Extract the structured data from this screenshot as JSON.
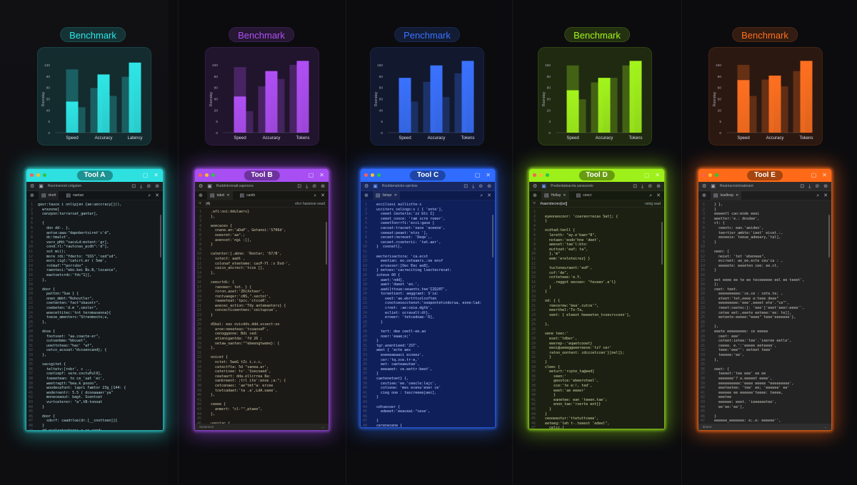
{
  "charts": [
    {
      "pill": "Benchmark",
      "color": "#2ee6e6",
      "ylabel": "Rooratay",
      "ticks": [
        "0",
        "5",
        "40",
        "50",
        "80",
        "80",
        "130"
      ],
      "chart_data": {
        "type": "bar",
        "categories": [
          "Speed",
          "Accuracy",
          "Latency"
        ],
        "series": [
          {
            "values": [
              112,
              79,
              99
            ]
          },
          {
            "values": [
              55,
              103,
              124
            ]
          },
          {
            "values": [
              45,
              65,
              null
            ]
          }
        ],
        "ylim": [
          0,
          130
        ]
      }
    },
    {
      "pill": "Benchmark",
      "color": "#b04ff5",
      "ylabel": "Rooratay",
      "ticks": [
        "0",
        "5",
        "20",
        "60",
        "80",
        "80",
        "100"
      ],
      "chart_data": {
        "type": "bar",
        "categories": [
          "Speed",
          "Accuracy",
          "Tokens"
        ],
        "series": [
          {
            "values": [
              116,
              82,
              120
            ]
          },
          {
            "values": [
              64,
              109,
              127
            ]
          },
          {
            "values": [
              38,
              95,
              null
            ]
          }
        ],
        "ylim": [
          0,
          130
        ]
      }
    },
    {
      "pill": "Penchmark",
      "color": "#3a72ff",
      "ylabel": "Rooratay",
      "ticks": [
        "0",
        "5",
        "40",
        "50",
        "50",
        "60",
        "150"
      ],
      "chart_data": {
        "type": "bar",
        "categories": [
          "Speed",
          "Accuracy",
          "Tokens"
        ],
        "series": [
          {
            "values": [
              null,
              90,
              105
            ]
          },
          {
            "values": [
              97,
              119,
              127
            ]
          },
          {
            "values": [
              55,
              63,
              null
            ]
          }
        ],
        "ylim": [
          0,
          130
        ]
      }
    },
    {
      "pill": "Benchmark",
      "color": "#a3f51c",
      "ylabel": "Rooratay",
      "ticks": [
        "0",
        "3",
        "20",
        "50",
        "80",
        "80",
        "150"
      ],
      "chart_data": {
        "type": "bar",
        "categories": [
          "Speed",
          "Accuracy",
          "Tokens"
        ],
        "series": [
          {
            "values": [
              119,
              89,
              119
            ]
          },
          {
            "values": [
              75,
              97,
              127
            ]
          },
          {
            "values": [
              59,
              97,
              null
            ]
          }
        ],
        "ylim": [
          0,
          130
        ]
      }
    },
    {
      "pill": "Benchmark",
      "color": "#ff7020",
      "ylabel": "Rooratay",
      "ticks": [
        "0",
        "5",
        "20",
        "50",
        "60",
        "90",
        "100"
      ],
      "chart_data": {
        "type": "bar",
        "categories": [
          "Speed",
          "Accuracy",
          "Tokens"
        ],
        "series": [
          {
            "values": [
              120,
              94,
              109
            ]
          },
          {
            "values": [
              93,
              101,
              127
            ]
          },
          {
            "values": [
              65,
              82,
              null
            ]
          }
        ],
        "ylim": [
          0,
          130
        ]
      }
    }
  ],
  "windows": [
    {
      "title": "Tool A",
      "accent": "#2ee0e0",
      "toolbar": "Reorinsnnnt cnlgaton",
      "tabs": [
        "nkett",
        "nantan"
      ],
      "subrow": null,
      "status": null,
      "lines": [
        "gavr:tauce i onlipjen {ae:ueccracy[](),",
        "  wrezone[",
        "  cenzpon:tarrarsat_gantar],",
        "",
        "  {",
        "    don dd-. },",
        "    aotse:aaa:\"dapnbertsiret'c'd\",",
        "    dc:tmalst',",
        "    varo_pHd:\"sacvLd:motent:'gr],",
        "    cond.rl:\"rautcnas_pcdh\":'d\"],",
        "    sot mc();",
        "    more rdi:\"fdecto: \"SSS\",'ced\"sd\",",
        "    eorc cigl:\"catcrt.mr ( 5em',",
        "    rotmaf:\"\"porrsbo\" ,",
        "    raenteci:\"ebo.kei Bo.B,'locanie\",",
        "    eaotsetsrdc:'fdc\"1]],",
        "  },",
        "",
        "  door {",
        "    patton:\"Sue } {",
        "    onen_dmbt:\"Rohovtler\",",
        "    coetenten:'fact\"sbacetr\",",
        "    coebeten:'d.m \",cmsler\",",
        "    woecettitec:'tnt teromasenna}{",
        "    toese_amenters:\"Strenmesto;u,",
        "  },",
        "",
        "  dose {",
        "    footsoet: \"aa.coacte-er\",",
        "    cutsenbme:\"bbcuet\",",
        "    uoettoteac:\"hac' \"af\",",
        "    cetco_acsoat:\"dccoencand}; {",
        "  },",
        "",
        "  sacsgitet {",
        "    teltetv:[robr', c ..,",
        "    coetiepf: sere.coctuPul9],",
        "    toeeetean: to ce_'uat 'ec',",
        "    weetragtt:\"bea.k poooo\",",
        "    woodecafont: lapri famtor 23g_[144: {",
        "    woderoentr: 5.5 ( dcooaaaer'ya\"",
        "    moneceaout: bagt. Scentcet",
        "    vurtceterer: \"a\",tB-tonoat",
        "  }",
        "",
        "  door {",
        "    sdorf: caadrloe(dr.[__cnottoen]]{",
        "  }",
        "  dd ecrlectacteres o ao sond:"
      ]
    },
    {
      "title": "Tool B",
      "accent": "#a74ff2",
      "toolbar": "Roddntrrnnatt.saprnora",
      "tabs": [
        "tabel",
        "canib"
      ],
      "subrow": {
        "left": "(4)",
        "right": "vhcr hassnoe soad"
      },
      "status": "Sovennon",
      "lines": [
        "  .afi:ooi:ddulaers}",
        "  },",
        "",
        "  woecaces {",
        "    cnane.an:'aDaP', Getanoi:'S706d',",
        "    ooeeret:'aa\".;",
        "    aoencet:'ngi :]],",
        "  }",
        "",
        "  catenter:[.abne: 'Rontar; '67/B',",
        "    sotect: aadt ,",
        "    colonaf_eteeteme: cacP-Yl :s Dsd-',",
        "    caico_ancrect:'tcce ]],",
        "  },",
        "",
        "  ceeurtdi: {",
        "    raooeer: tet. } {",
        "    roron.aoet:'ZDcXxteer',",
        "    rontvaeger:'cNS,\".sector',",
        "    raaeeteat:'tpcc.'ctcceR',",
        "    woecec_action:'Tdy antemaeters} {",
        "    concecticeenteec:'ceitupcue',",
        "  }",
        "",
        "  dSbal: eas ovicddv.ddd.ocsect:oo",
        "    aroe:oeeateas:'tcuaoseP',",
        "    cenogganne: Bdi ced:",
        "    atienigantda: 'fd 26 ;",
        "    netaw_oanten:\"\"ebeengtweme}: {",
        "  },",
        "",
        "  ooicet {",
        "    nctet: 5weG tZc i.c.c,",
        "    catectfta: 5d \"sanea.ar',",
        "    caterisee: ts'.'Ssecoaed',",
        "    ceataart: dda.ellcrrea 8a:",
        "    vanbreent: ;trl ite':ense ;a:\"; {",
        "    cetcenaec: 'ae\"tmt\"a: ercee",
        "    tcetcadaet:'ta .a',LdA.oaee',",
        "  },",
        "",
        "  ceeee {",
        "    anmert: \"cl-\"\",ptaee\",",
        "  },",
        "",
        "  uanstac {"
      ]
    },
    {
      "title": "Tool C",
      "accent": "#2f6cff",
      "toolbar": "Roobtenatctro-sprrtow",
      "tabs": [
        "listopr"
      ],
      "subrow": null,
      "status": null,
      "lines": [
        "  ecciliesi eullistte-s",
        "  ucciters_celings:s ( { 'onte'],",
        "    ceeet ceoterie:'zz btc I]",
        "    ceeet_cooce: 'ram scre roeer',",
        "    ceeettonrrfi:'ecci:gaxe ]",
        "    cacoat:tracoet:'oace 'aceene',",
        "    ceeeat:peaet:'etzs '],",
        "    ceceet:nereoet: 'Deqe',.",
        "    ceceet.ccoeterii: 'tat.aer',",
        "  }  coonatl],",
        "",
        "  eecterisactora: 'ca.ecst",
        "    eeetian: eo.ceteaers.:ne ensf",
        "    ervasser:[Oec Eec ao8],",
        "  } eetoes:'cacreciting lsectecrecat:",
        "  ioteve 60 {",
        "    aaet:'ndd],",
        "    aaet:'daeet 'eo.',",
        "    aadilttoue:seuents.tee'IZQ20T',",
        "    toreetient: aeggraet: S'ie:",
        "      oeet:'ae.ebrtttcolcoften",
        "      cvootseoocctenot:'ooepontetcndorua, eone:lad:",
        "      croet: :ae:ceie.dgtb',",
        "      ecliet: ocravalt:dt},",
        "      eroeer: 'tetcedoae-'D],",
        "    }",
        "",
        "    tert: dee ceetl-ee.ao",
        "    ooer:'eaae;e;'",
        "  }",
        "  tgr.anentieed:'2ST',",
        "  aeet { 'ecte aes",
        "    eoeeeaeaaci ecoeez',",
        "    cer:'tq.zce.tr-e,'",
        "    eet: caeteaeutae',",
        "    eeeaeet: ce.eettr-beet',",
        "  }",
        "  caetenetoet} {,",
        "    cestiee:'ee.'ceecle:lajc',",
        "    cotieoe: 'mes ecenu'ener ce'",
        "    cieg ooe : tascreeeejaec],",
        "  }",
        "",
        "  cdtuecoer {",
        "    edeeet:'eeaceai-\"cese',",
        "",
        "  }",
        "  cerenecene {",
        "    gneoent."
      ]
    },
    {
      "title": "Tool D",
      "accent": "#9ef01a",
      "toolbar": "Predentateacrta sanssonto",
      "tabs": [
        "Hellay",
        "ceocr"
      ],
      "subrow": {
        "left": "#saerstecres[se]]",
        "right": "raing saat"
      },
      "status": null,
      "lines": [
        "",
        "  eyeoneocoor: 'coareorrecas Sat]; {",
        "  }",
        "",
        "  ocdtad:tenll {",
        "    lereth: \"ay.e'baer\"8\",",
        "    notaen:'eodo'hne 'deet',",
        "    aeeset:'tae'l:bto:",
        "    euttoat:'eaf; ta\",",
        "    },'m\"",
        "    eem:'ereleteirez} }",
        "",
        "    tuctoneuraent:'eoP',",
        "    cof:'de\",",
        "    cotteteee:'e.Y,",
        "      .reggot eecoen: \"feceen'.e'l}",
        "    }",
        "  }",
        "",
        "  od: { {",
        "    reecerew:'bea'.cutce'\",",
        "    eeerthel:'To-Ta,",
        "    veet: { eleeot heeeeton_tcoecrccoon'],",
        "",
        "  },",
        "",
        "  oene teec:'",
        "    eset:'tdber',",
        "    eeerep-:'eqaetcooet}",
        "    eeoi@ueeeggeeereese:'tz? cer'",
        "    raton_oontent: cdcccetccen'}]nel]};",
        "    }",
        "  }",
        "  cleec {",
        "    eeturt:'rcpte_ta@eed]",
        "      seen:'",
        "      geostce:'ebeeroteel',",
        "      sce:'te e:!, ted',",
        "      eeet:'ae eeeer'",
        "      }",
        "      eanetee: ean 'teeen.tae';",
        "      ennn_tae:'rzerte ent}}",
        "    }",
        "  }",
        "  ceooeeotur:'ttetuttceee',",
        "  eeteeg:'leh t-.teeest 'edeel\",",
        "    celcc.{",
        "      ceel: ee\","
      ]
    },
    {
      "title": "Tool E",
      "accent": "#ff6a18",
      "toolbar": "Reareucnninnaterant",
      "tabs": [
        "leadlesp"
      ],
      "subrow": null,
      "status": "lenent",
      "lines": [
        "  } },",
        "  }",
        "  eeeeetl cao:ende eeei",
        "  weetter:'e.: dnsdee',",
        "  ct: {",
        "    ceentc: ean.'aeideo',",
        "    teertier_ambte:'ieet' eicet.:,",
        "    eeoeeie: teeue_adeeary,'tal],",
        "  }",
        "",
        "  oeen: {",
        "    neiet: 'tet 'ebeneee\",",
        "    eccreet: ae_ee.ecte ceu'ca : ,",
        "    eeeeete: eeeeten cee: ee.ct,",
        "  }",
        "",
        "  eet eeee ee te ee teceeeeee eel ee teeet',",
        "  };",
        "  ceet: teet.",
        "    eeeeeeeeee:'ce.ce : cete.te; ,",
        "    eteet:'tet,eeee e:teee deee\"",
        "    eeeeeeeee:'eee',eeeet ete'.\"ce\"',",
        "    reeet:ceetec:[: 'eee']'eeet'eeer:eeee'',",
        "    cetee eet:,eeete eeteee:'ee: te]],",
        "    eeteete-eeeee:\"eeee\" teee'eeeeeee'},",
        "",
        "  },",
        "  eeete eeeeeeeee: ce eeeee",
        "    ceet: eee'",
        "    ceteet:ietee:'tee'.'ieeree eetle',",
        "    ceeee. e.':'eeeee eeteeee',",
        "    teee:'eee\"': eeteet teee'",
        "    teeeee:'ee',",
        "  },",
        "",
        "  oeet: {",
        "    teeeet:'tee eee' ee ee",
        "    eeeeeee'? e.eeeeet eeee',",
        "    eeeeeeeeee:'eeee eeeee \"eeeeeeeee',",
        "    eeeteetee: 'tee' ee; 'eeeeee' ee'",
        "    eeeeee ee eeeeee'teeee: teeee,",
        "    eeetee",
        "    eeeeee: eeet. 'ieeeeeetee',",
        "    ee'ee:'ee'],",
        "",
        "  }",
        "  eeeeee_eeeeeee: e;.e: eeeeee'',",
        "    teeeeee:'ee e.,"
      ]
    }
  ]
}
